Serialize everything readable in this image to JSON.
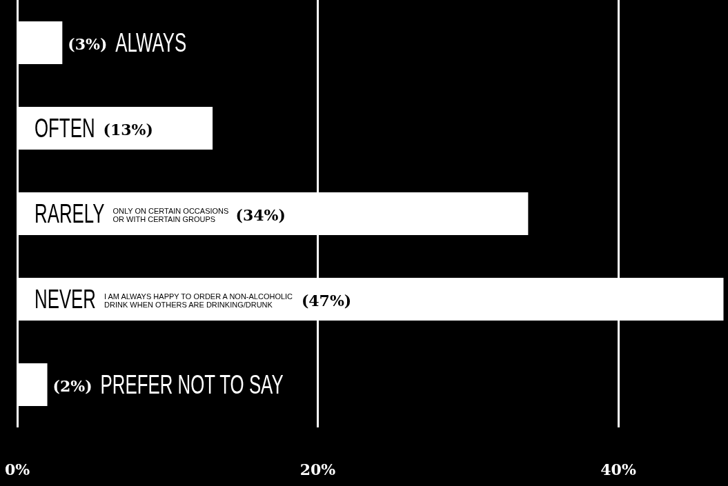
{
  "chart_data": {
    "type": "bar",
    "orientation": "horizontal",
    "color": "#ffffff",
    "categories": [
      "ALWAYS",
      "OFTEN",
      "RARELY",
      "NEVER",
      "PREFER NOT TO SAY"
    ],
    "values": [
      3,
      13,
      34,
      47,
      2
    ],
    "value_labels": [
      "(3%)",
      "(13%)",
      "(34%)",
      "(47%)",
      "(2%)"
    ],
    "annotations": [
      "ONLY ON CERTAIN OCCASIONS\nOR WITH CERTAIN GROUPS",
      "I AM ALWAYS HAPPY TO ORDER A NON-ALCOHOLIC\nDRINK WHEN OTHERS ARE DRINKING/DRUNK"
    ],
    "xlim": [
      0,
      47.3
    ],
    "xticks": [
      {
        "value": 0,
        "label": "0%"
      },
      {
        "value": 20,
        "label": "20%"
      },
      {
        "value": 40,
        "label": "40%"
      }
    ],
    "grid": "x"
  }
}
